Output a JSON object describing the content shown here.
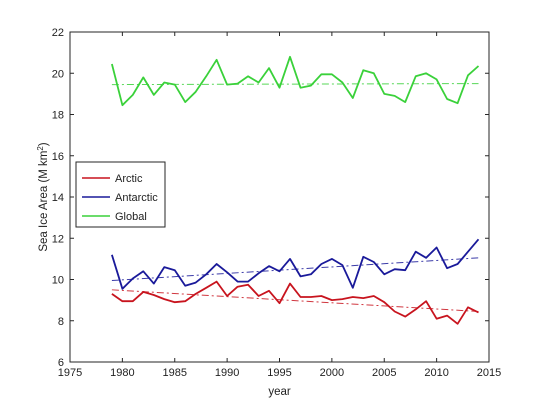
{
  "chart_data": {
    "type": "line",
    "title": "",
    "xlabel": "year",
    "ylabel": "Sea Ice Area (M km",
    "ylabel_superscript": "2",
    "ylabel_close": ")",
    "xlim": [
      1975,
      2015
    ],
    "ylim": [
      6,
      22
    ],
    "xticks": [
      1975,
      1980,
      1985,
      1990,
      1995,
      2000,
      2005,
      2010,
      2015
    ],
    "yticks": [
      6,
      8,
      10,
      12,
      14,
      16,
      18,
      20,
      22
    ],
    "grid": false,
    "legend_position": "middle-left",
    "x": [
      1979,
      1980,
      1981,
      1982,
      1983,
      1984,
      1985,
      1986,
      1987,
      1988,
      1989,
      1990,
      1991,
      1992,
      1993,
      1994,
      1995,
      1996,
      1997,
      1998,
      1999,
      2000,
      2001,
      2002,
      2003,
      2004,
      2005,
      2006,
      2007,
      2008,
      2009,
      2010,
      2011,
      2012,
      2013,
      2014
    ],
    "series": [
      {
        "name": "Arctic",
        "color": "#c8141e",
        "values": [
          9.3,
          8.95,
          8.95,
          9.4,
          9.25,
          9.05,
          8.9,
          8.95,
          9.3,
          9.6,
          9.9,
          9.2,
          9.65,
          9.75,
          9.2,
          9.45,
          8.85,
          9.8,
          9.15,
          9.15,
          9.2,
          9.0,
          9.05,
          9.15,
          9.1,
          9.2,
          8.9,
          8.45,
          8.2,
          8.55,
          8.95,
          8.1,
          8.25,
          7.85,
          8.65,
          8.4
        ],
        "trend": [
          9.5,
          8.45
        ]
      },
      {
        "name": "Antarctic",
        "color": "#1a1a9a",
        "values": [
          11.2,
          9.55,
          10.05,
          10.4,
          9.8,
          10.6,
          10.45,
          9.7,
          9.85,
          10.25,
          10.75,
          10.35,
          9.9,
          9.9,
          10.3,
          10.65,
          10.4,
          11.0,
          10.15,
          10.25,
          10.75,
          11.0,
          10.7,
          9.6,
          11.1,
          10.85,
          10.25,
          10.5,
          10.45,
          11.35,
          11.05,
          11.55,
          10.55,
          10.75,
          11.35,
          11.95
        ],
        "trend": [
          9.95,
          11.05
        ]
      },
      {
        "name": "Global",
        "color": "#3ad13a",
        "values": [
          20.45,
          18.45,
          18.95,
          19.8,
          18.95,
          19.55,
          19.45,
          18.6,
          19.1,
          19.85,
          20.65,
          19.45,
          19.5,
          19.85,
          19.55,
          20.25,
          19.3,
          20.8,
          19.3,
          19.4,
          19.95,
          19.95,
          19.55,
          18.8,
          20.15,
          20.0,
          19.0,
          18.9,
          18.6,
          19.85,
          20.0,
          19.7,
          18.75,
          18.55,
          19.9,
          20.35
        ],
        "trend": [
          19.45,
          19.5
        ]
      }
    ]
  }
}
